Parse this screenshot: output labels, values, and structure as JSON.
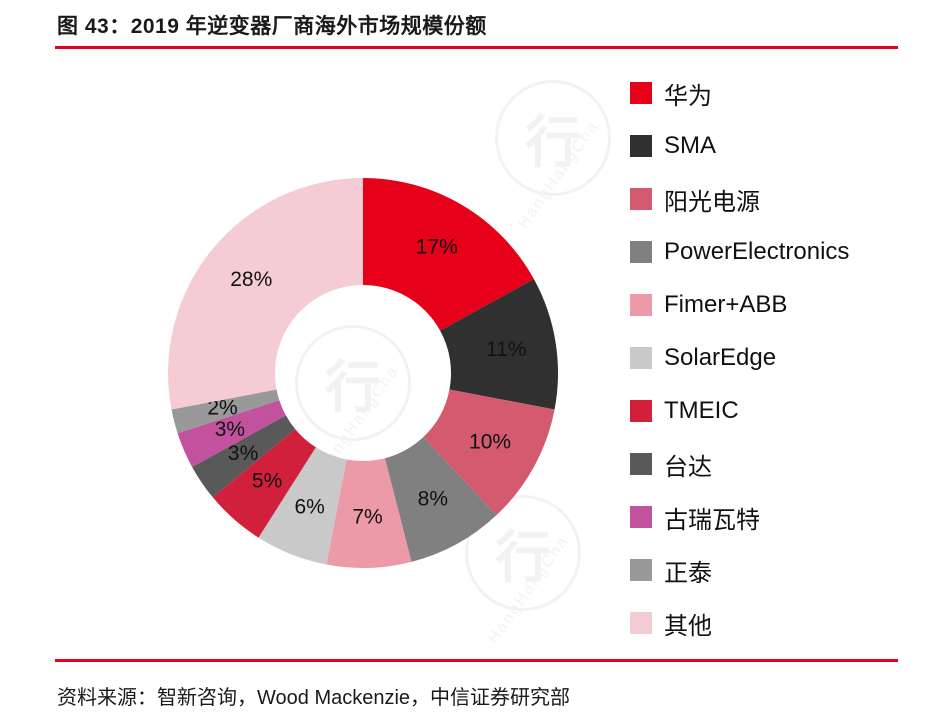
{
  "title": "图 43：2019 年逆变器厂商海外市场规模份额",
  "source": "资料来源：智新咨询，Wood Mackenzie，中信证券研究部",
  "accent_color": "#e60019",
  "watermark": {
    "cn": "行",
    "en": "HangHangCha"
  },
  "chart_data": {
    "type": "pie",
    "donut": true,
    "start_angle_deg": 0,
    "direction": "clockwise",
    "inner_radius_ratio": 0.45,
    "legend_position": "right",
    "value_suffix": "%",
    "series": [
      {
        "label": "华为",
        "value": 17,
        "color": "#e60019"
      },
      {
        "label": "SMA",
        "value": 11,
        "color": "#303030"
      },
      {
        "label": "阳光电源",
        "value": 10,
        "color": "#d45a70"
      },
      {
        "label": "PowerElectronics",
        "value": 8,
        "color": "#808080"
      },
      {
        "label": "Fimer+ABB",
        "value": 7,
        "color": "#ec9aa8"
      },
      {
        "label": "SolarEdge",
        "value": 6,
        "color": "#c9c9c9"
      },
      {
        "label": "TMEIC",
        "value": 5,
        "color": "#d1203c"
      },
      {
        "label": "台达",
        "value": 3,
        "color": "#595959"
      },
      {
        "label": "古瑞瓦特",
        "value": 3,
        "color": "#c2529e"
      },
      {
        "label": "正泰",
        "value": 2,
        "color": "#999999"
      },
      {
        "label": "其他",
        "value": 28,
        "color": "#f6ccd4"
      }
    ]
  }
}
